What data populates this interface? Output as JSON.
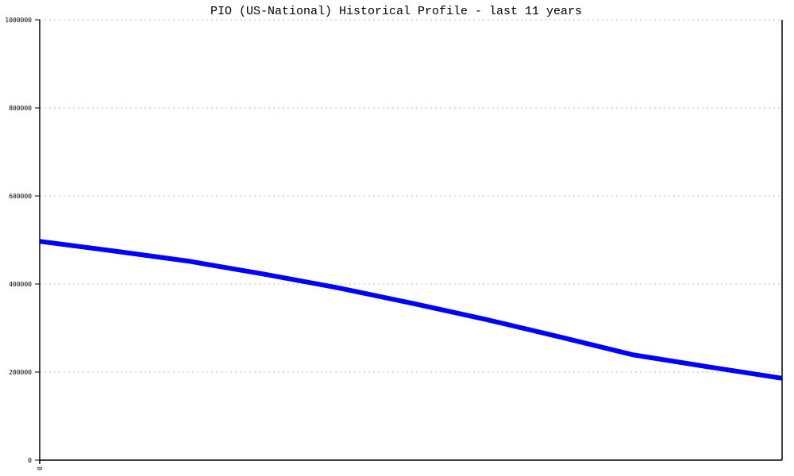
{
  "chart_data": {
    "type": "line",
    "title": "PIO (US-National) Historical Profile - last 11 years",
    "xlabel": "",
    "ylabel": "",
    "ylim": [
      0,
      1000000
    ],
    "yticks": [
      "0",
      "200000",
      "400000",
      "600000",
      "800000",
      "1000000"
    ],
    "xticks": [
      "0"
    ],
    "grid": true,
    "line_color": "#0000ff",
    "series": [
      {
        "values": [
          497000,
          475000,
          452000,
          423000,
          392000,
          357000,
          320000,
          280000,
          239000,
          212000,
          186000
        ]
      }
    ]
  }
}
